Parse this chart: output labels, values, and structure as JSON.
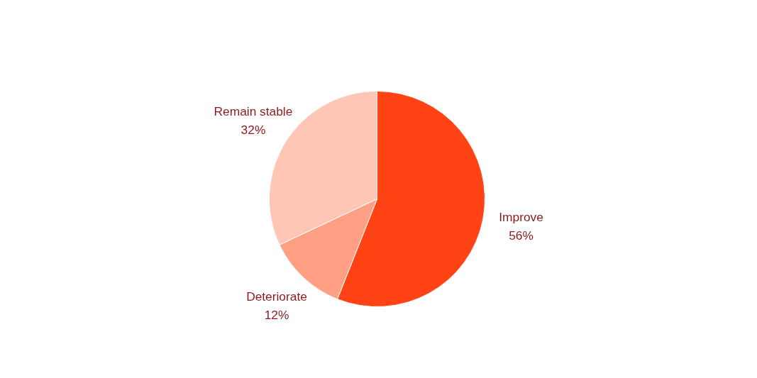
{
  "chart_data": {
    "type": "pie",
    "categories": [
      "Improve",
      "Deteriorate",
      "Remain stable"
    ],
    "values": [
      56,
      12,
      32
    ],
    "colors": [
      "#ff4314",
      "#ffa085",
      "#ffc5b5"
    ],
    "value_labels": [
      "56%",
      "12%",
      "32%"
    ]
  }
}
